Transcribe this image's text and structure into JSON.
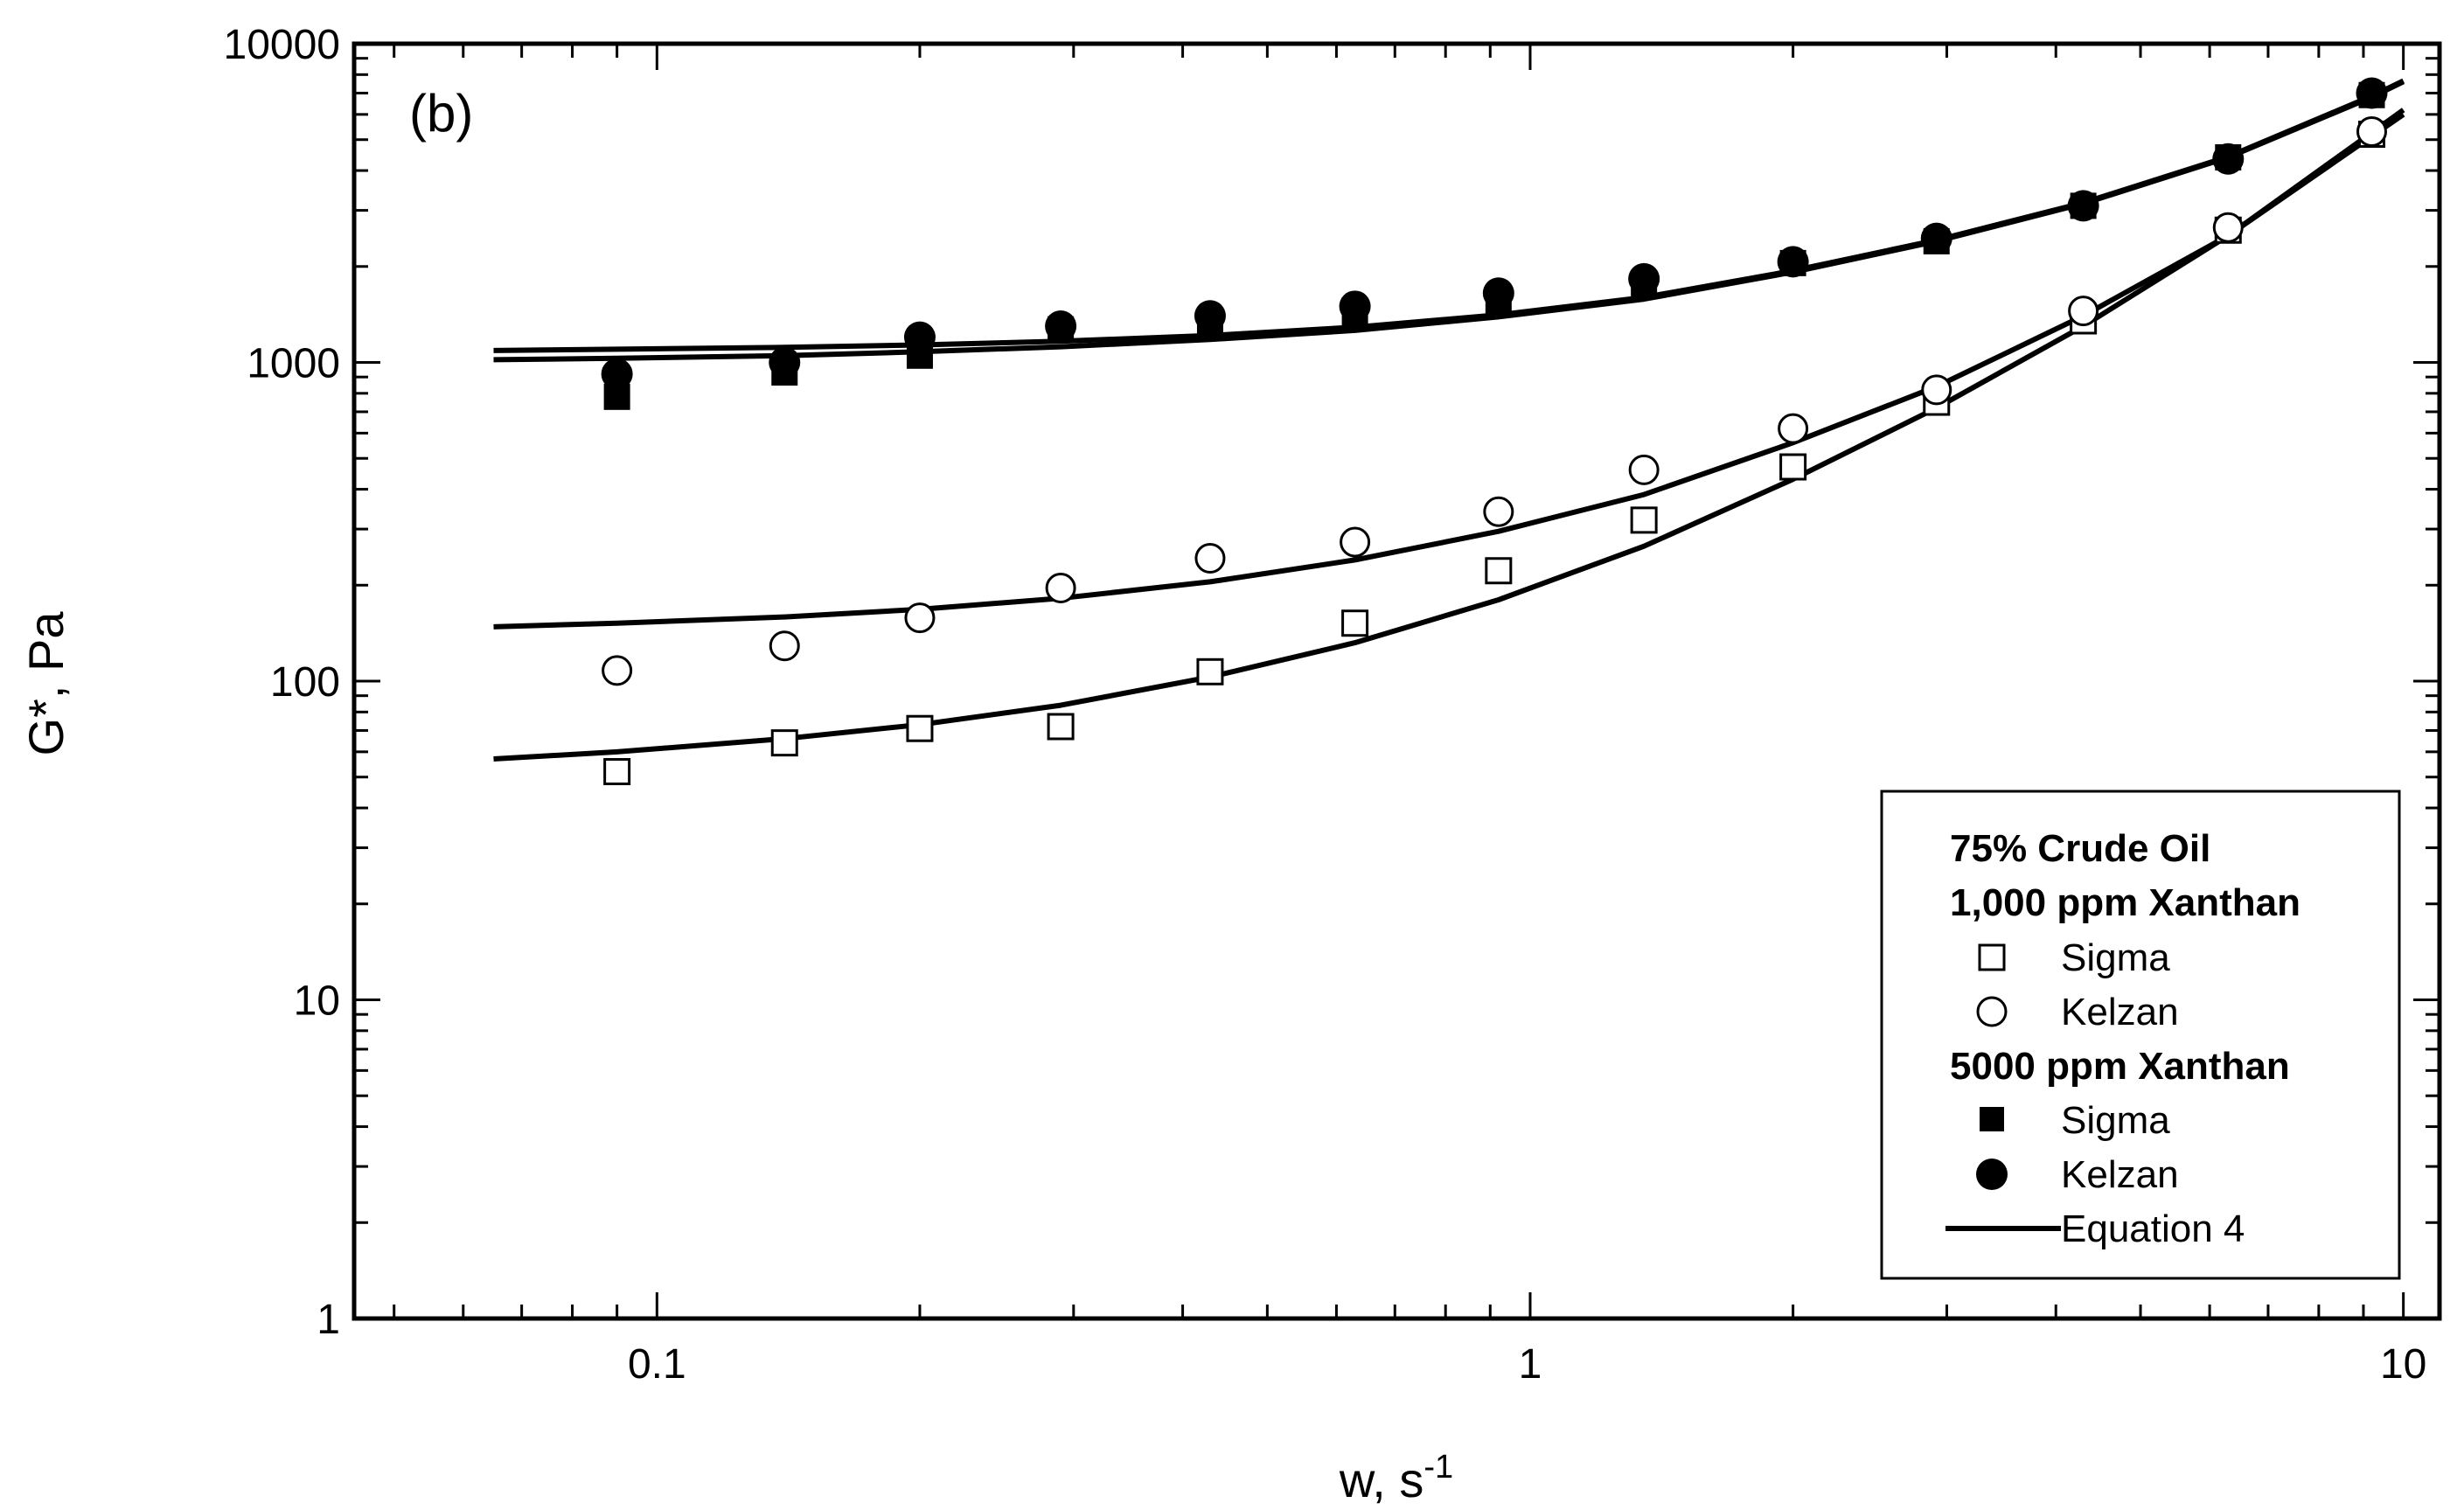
{
  "chart_data": {
    "type": "scatter",
    "title": "",
    "panel_label": "(b)",
    "xlabel": "w, s",
    "xlabel_sup": "-1",
    "ylabel": "G*, Pa",
    "xscale": "log",
    "yscale": "log",
    "xlim": [
      0.045,
      11
    ],
    "ylim": [
      1,
      10000
    ],
    "xticks": [
      {
        "value": 0.1,
        "label": "0.1"
      },
      {
        "value": 1,
        "label": "1"
      },
      {
        "value": 10,
        "label": "10"
      }
    ],
    "yticks": [
      {
        "value": 1,
        "label": "1"
      },
      {
        "value": 10,
        "label": "10"
      },
      {
        "value": 100,
        "label": "100"
      },
      {
        "value": 1000,
        "label": "1000"
      },
      {
        "value": 10000,
        "label": "10000"
      }
    ],
    "series": [
      {
        "name": "Sigma (1,000 ppm)",
        "marker": "square-open",
        "x": [
          0.09,
          0.14,
          0.2,
          0.29,
          0.43,
          0.63,
          0.92,
          1.35,
          2.0,
          2.92,
          4.3,
          6.3,
          9.2
        ],
        "y": [
          52,
          64,
          71,
          72,
          107,
          152,
          222,
          320,
          470,
          750,
          1350,
          2600,
          5200
        ]
      },
      {
        "name": "Kelzan (1,000 ppm)",
        "marker": "circle-open",
        "x": [
          0.09,
          0.14,
          0.2,
          0.29,
          0.43,
          0.63,
          0.92,
          1.35,
          2.0,
          2.92,
          4.3,
          6.3,
          9.2
        ],
        "y": [
          108,
          129,
          158,
          196,
          243,
          273,
          340,
          460,
          620,
          820,
          1450,
          2650,
          5300
        ]
      },
      {
        "name": "Sigma (5000 ppm)",
        "marker": "square-filled",
        "x": [
          0.09,
          0.14,
          0.2,
          0.29,
          0.43,
          0.63,
          0.92,
          1.35,
          2.0,
          2.92,
          4.3,
          6.3,
          9.2
        ],
        "y": [
          780,
          930,
          1050,
          1270,
          1330,
          1420,
          1560,
          1750,
          2050,
          2400,
          3100,
          4400,
          6900
        ]
      },
      {
        "name": "Kelzan (5000 ppm)",
        "marker": "circle-filled",
        "x": [
          0.09,
          0.14,
          0.2,
          0.29,
          0.43,
          0.63,
          0.92,
          1.35,
          2.0,
          2.92,
          4.3,
          6.3,
          9.2
        ],
        "y": [
          920,
          1000,
          1200,
          1300,
          1400,
          1500,
          1650,
          1830,
          2070,
          2450,
          3100,
          4350,
          7000
        ]
      }
    ],
    "fits": [
      {
        "name": "Equation 4 - Sigma 1,000 ppm",
        "x": [
          0.065,
          0.09,
          0.14,
          0.2,
          0.29,
          0.43,
          0.63,
          0.92,
          1.35,
          2.0,
          2.92,
          4.3,
          6.3,
          10
        ],
        "y": [
          57,
          60,
          66,
          73,
          84,
          103,
          132,
          180,
          265,
          430,
          720,
          1300,
          2500,
          6200
        ]
      },
      {
        "name": "Equation 4 - Kelzan 1,000 ppm",
        "x": [
          0.065,
          0.09,
          0.14,
          0.2,
          0.29,
          0.43,
          0.63,
          0.92,
          1.35,
          2.0,
          2.92,
          4.3,
          6.3,
          10
        ],
        "y": [
          148,
          152,
          159,
          168,
          182,
          205,
          240,
          295,
          385,
          560,
          840,
          1400,
          2500,
          6000
        ]
      },
      {
        "name": "Equation 4 - Sigma 5000 ppm",
        "x": [
          0.065,
          0.09,
          0.14,
          0.2,
          0.29,
          0.43,
          0.63,
          0.92,
          1.35,
          2.0,
          2.92,
          4.3,
          6.3,
          9.2,
          10
        ],
        "y": [
          1020,
          1030,
          1050,
          1080,
          1120,
          1180,
          1260,
          1390,
          1580,
          1920,
          2400,
          3150,
          4400,
          6800,
          7600
        ]
      },
      {
        "name": "Equation 4 - Kelzan 5000 ppm",
        "x": [
          0.065,
          0.09,
          0.14,
          0.2,
          0.29,
          0.43,
          0.63,
          0.92,
          1.35,
          2.0,
          2.92,
          4.3,
          6.3,
          9.2,
          10
        ],
        "y": [
          1090,
          1100,
          1115,
          1135,
          1165,
          1215,
          1290,
          1410,
          1600,
          1940,
          2420,
          3170,
          4420,
          6850,
          7650
        ]
      }
    ],
    "legend": {
      "placement": "bottom-right",
      "heading1": "75% Crude Oil",
      "heading2": "1,000 ppm Xanthan",
      "item1": "Sigma",
      "item2": "Kelzan",
      "heading3": "5000 ppm Xanthan",
      "item3": "Sigma",
      "item4": "Kelzan",
      "item5": "Equation 4"
    }
  }
}
